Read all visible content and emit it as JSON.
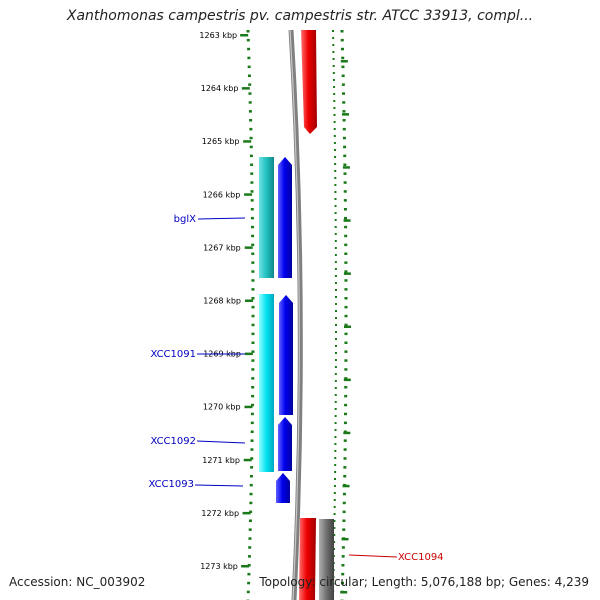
{
  "title": "Xanthomonas campestris pv. campestris str. ATCC 33913, compl...",
  "accession": "Accession: NC_003902",
  "topology": "Topology: circular; Length: 5,076,188 bp; Genes: 4,239",
  "chart_data": {
    "type": "genome-map",
    "axis": {
      "unit": "kbp",
      "ticks": [
        "1263 kbp",
        "1264 kbp",
        "1265 kbp",
        "1266 kbp",
        "1267 kbp",
        "1268 kbp",
        "1269 kbp",
        "1270 kbp",
        "1271 kbp",
        "1272 kbp",
        "1273 kbp"
      ]
    },
    "genes": [
      {
        "label": "bglX",
        "strand": "minus",
        "track": "inner",
        "color": "#0000ee"
      },
      {
        "label": "XCC1091",
        "strand": "minus",
        "track": "inner",
        "color": "#0000ee"
      },
      {
        "label": "XCC1092",
        "strand": "minus",
        "track": "inner",
        "color": "#0000ee"
      },
      {
        "label": "XCC1093",
        "strand": "minus",
        "track": "inner",
        "color": "#0000ee"
      },
      {
        "label": "XCC1094",
        "strand": "plus",
        "track": "outer",
        "color": "#ee0000"
      }
    ],
    "colors": {
      "minus_gene": "#0000ee",
      "minus_cds_a": "#20c0c0",
      "minus_cds_b": "#00e0f0",
      "plus_gene": "#ee0000",
      "plus_other": "#707070",
      "backbone": "#808080",
      "dotted_track": "#1a7a1a"
    }
  }
}
